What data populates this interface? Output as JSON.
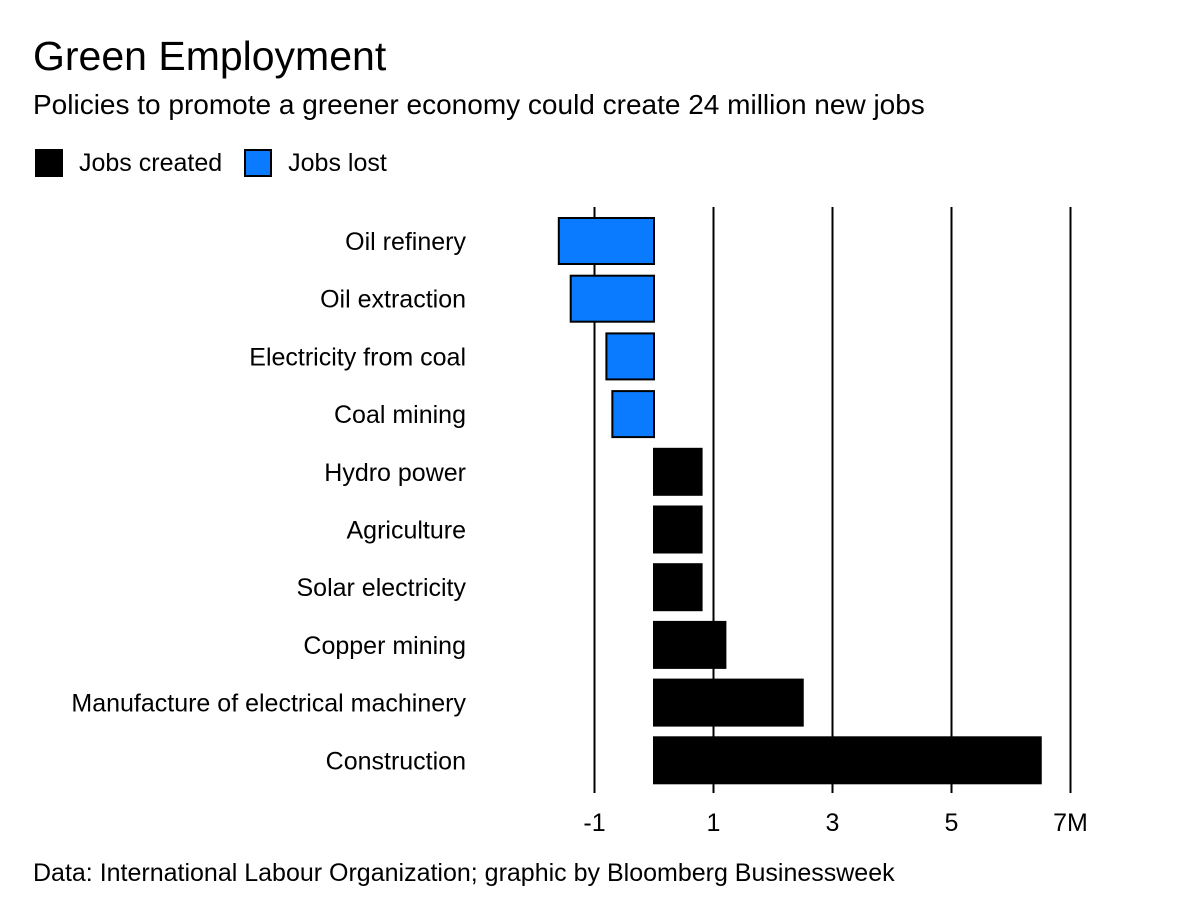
{
  "chart_data": {
    "type": "bar",
    "orientation": "horizontal",
    "title": "Green Employment",
    "subtitle": "Policies to promote a greener economy could create 24 million new jobs",
    "source": "Data: International Labour Organization; graphic by Bloomberg Businessweek",
    "categories": [
      "Oil refinery",
      "Oil extraction",
      "Electricity from coal",
      "Coal mining",
      "Hydro power",
      "Agriculture",
      "Solar electricity",
      "Copper mining",
      "Manufacture of electrical machinery",
      "Construction"
    ],
    "series": [
      {
        "name": "Jobs created",
        "color": "#000000",
        "values": [
          null,
          null,
          null,
          null,
          0.8,
          0.8,
          0.8,
          1.2,
          2.5,
          6.5
        ]
      },
      {
        "name": "Jobs lost",
        "color": "#0a7aff",
        "values": [
          -1.6,
          -1.4,
          -0.8,
          -0.7,
          null,
          null,
          null,
          null,
          null,
          null
        ]
      }
    ],
    "xlim": [
      -2.0,
      7.2
    ],
    "xticks": [
      -1,
      1,
      3,
      5,
      7
    ],
    "xtick_labels": [
      "-1",
      "1",
      "3",
      "5",
      "7M"
    ],
    "grid": "vertical lines at x ticks",
    "legend_position": "top-left"
  }
}
